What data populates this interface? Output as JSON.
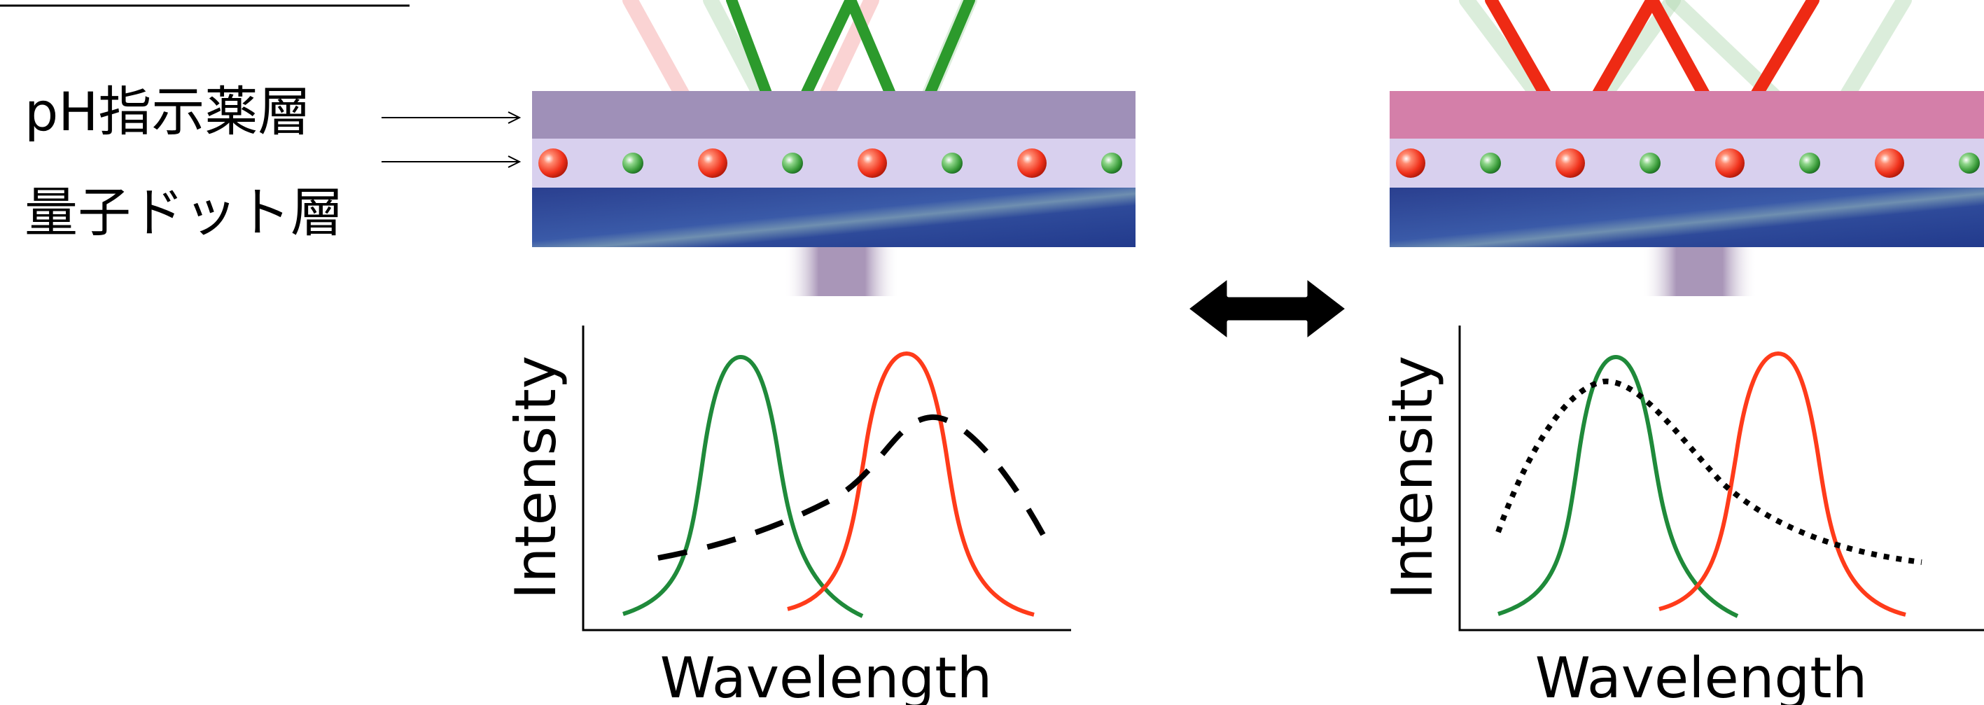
{
  "labels": {
    "ph_indicator_layer": "pH指示薬層",
    "quantum_dot_layer": "量子ドット層"
  },
  "panels": [
    {
      "id": "left",
      "top_layer_color": "#9f90b8",
      "light_beam_dominant": "green",
      "chart": {
        "xlabel": "Wavelength",
        "ylabel": "Intensity",
        "absorption_style": "dashed"
      }
    },
    {
      "id": "right",
      "top_layer_color": "#d47fa9",
      "light_beam_dominant": "red",
      "chart": {
        "xlabel": "Wavelength",
        "ylabel": "Intensity",
        "absorption_style": "dotted"
      }
    }
  ],
  "colors": {
    "green_emission": "#1f8a3a",
    "red_emission": "#ff3b1a",
    "absorption_curve": "#000000",
    "qd_layer": "#d8d0ee",
    "substrate": "#2a4599",
    "arrow": "#000000"
  },
  "icons": {
    "switch_arrow": "double-headed-arrow-icon"
  }
}
